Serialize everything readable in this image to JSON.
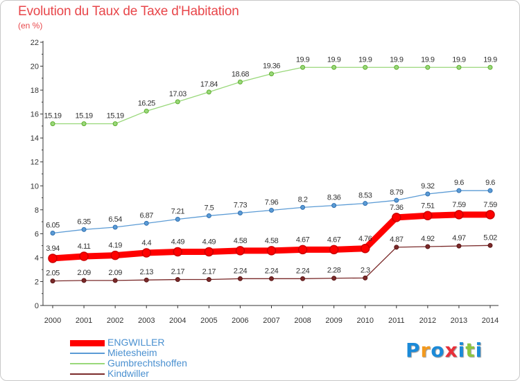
{
  "header": {
    "title": "Evolution du Taux de Taxe d'Habitation",
    "subtitle": "(en %)"
  },
  "logo": {
    "text": "Proxiti",
    "letters": [
      {
        "ch": "P",
        "color": "#1b8ad8"
      },
      {
        "ch": "r",
        "color": "#f39a1e"
      },
      {
        "ch": "o",
        "color": "#1b8ad8"
      },
      {
        "ch": "x",
        "color": "#e8303a"
      },
      {
        "ch": "i",
        "color": "#1b8ad8"
      },
      {
        "ch": "t",
        "color": "#8cc63f"
      },
      {
        "ch": "i",
        "color": "#1b8ad8"
      }
    ]
  },
  "chart_data": {
    "type": "line",
    "title": "Evolution du Taux de Taxe d'Habitation",
    "subtitle": "(en %)",
    "xlabel": "",
    "ylabel": "",
    "x": [
      "2000",
      "2001",
      "2002",
      "2003",
      "2004",
      "2005",
      "2006",
      "2007",
      "2008",
      "2009",
      "2010",
      "2011",
      "2012",
      "2013",
      "2014"
    ],
    "ylim": [
      0,
      22
    ],
    "yticks": [
      0,
      2,
      4,
      6,
      8,
      10,
      12,
      14,
      16,
      18,
      20,
      22
    ],
    "grid": false,
    "legend_position": "bottom-left",
    "series": [
      {
        "name": "ENGWILLER",
        "color": "#ff0000",
        "marker_color": "#cc0000",
        "bold": true,
        "values": [
          3.94,
          4.11,
          4.19,
          4.4,
          4.49,
          4.49,
          4.58,
          4.58,
          4.67,
          4.67,
          4.76,
          7.36,
          7.51,
          7.59,
          7.59
        ],
        "labels": [
          "3.94",
          "4.11",
          "4.19",
          "4.4",
          "4.49",
          "4.49",
          "4.58",
          "4.58",
          "4.67",
          "4.67",
          "4.76",
          "7.36",
          "7.51",
          "7.59",
          "7.59"
        ]
      },
      {
        "name": "Mietesheim",
        "color": "#5b9bd5",
        "marker_color": "#2f6fb0",
        "bold": false,
        "values": [
          6.05,
          6.35,
          6.54,
          6.87,
          7.21,
          7.5,
          7.73,
          7.96,
          8.2,
          8.36,
          8.53,
          8.79,
          9.32,
          9.6,
          9.6
        ],
        "labels": [
          "6.05",
          "6.35",
          "6.54",
          "6.87",
          "7.21",
          "7.5",
          "7.73",
          "7.96",
          "8.2",
          "8.36",
          "8.53",
          "8.79",
          "9.32",
          "9.6",
          "9.6"
        ]
      },
      {
        "name": "Gumbrechtshoffen",
        "color": "#99d87a",
        "marker_color": "#5fae2e",
        "bold": false,
        "values": [
          15.19,
          15.19,
          15.19,
          16.25,
          17.03,
          17.84,
          18.68,
          19.36,
          19.9,
          19.9,
          19.9,
          19.9,
          19.9,
          19.9,
          19.9
        ],
        "labels": [
          "15.19",
          "15.19",
          "15.19",
          "16.25",
          "17.03",
          "17.84",
          "18.68",
          "19.36",
          "19.9",
          "19.9",
          "19.9",
          "19.9",
          "19.9",
          "19.9",
          "19.9"
        ]
      },
      {
        "name": "Kindwiller",
        "color": "#7a2a2a",
        "marker_color": "#5a1515",
        "bold": false,
        "values": [
          2.05,
          2.09,
          2.09,
          2.13,
          2.17,
          2.17,
          2.24,
          2.24,
          2.24,
          2.28,
          2.3,
          4.87,
          4.92,
          4.97,
          5.02
        ],
        "labels": [
          "2.05",
          "2.09",
          "2.09",
          "2.13",
          "2.17",
          "2.17",
          "2.24",
          "2.24",
          "2.24",
          "2.28",
          "2.3",
          "4.87",
          "4.92",
          "4.97",
          "5.02"
        ]
      }
    ]
  }
}
